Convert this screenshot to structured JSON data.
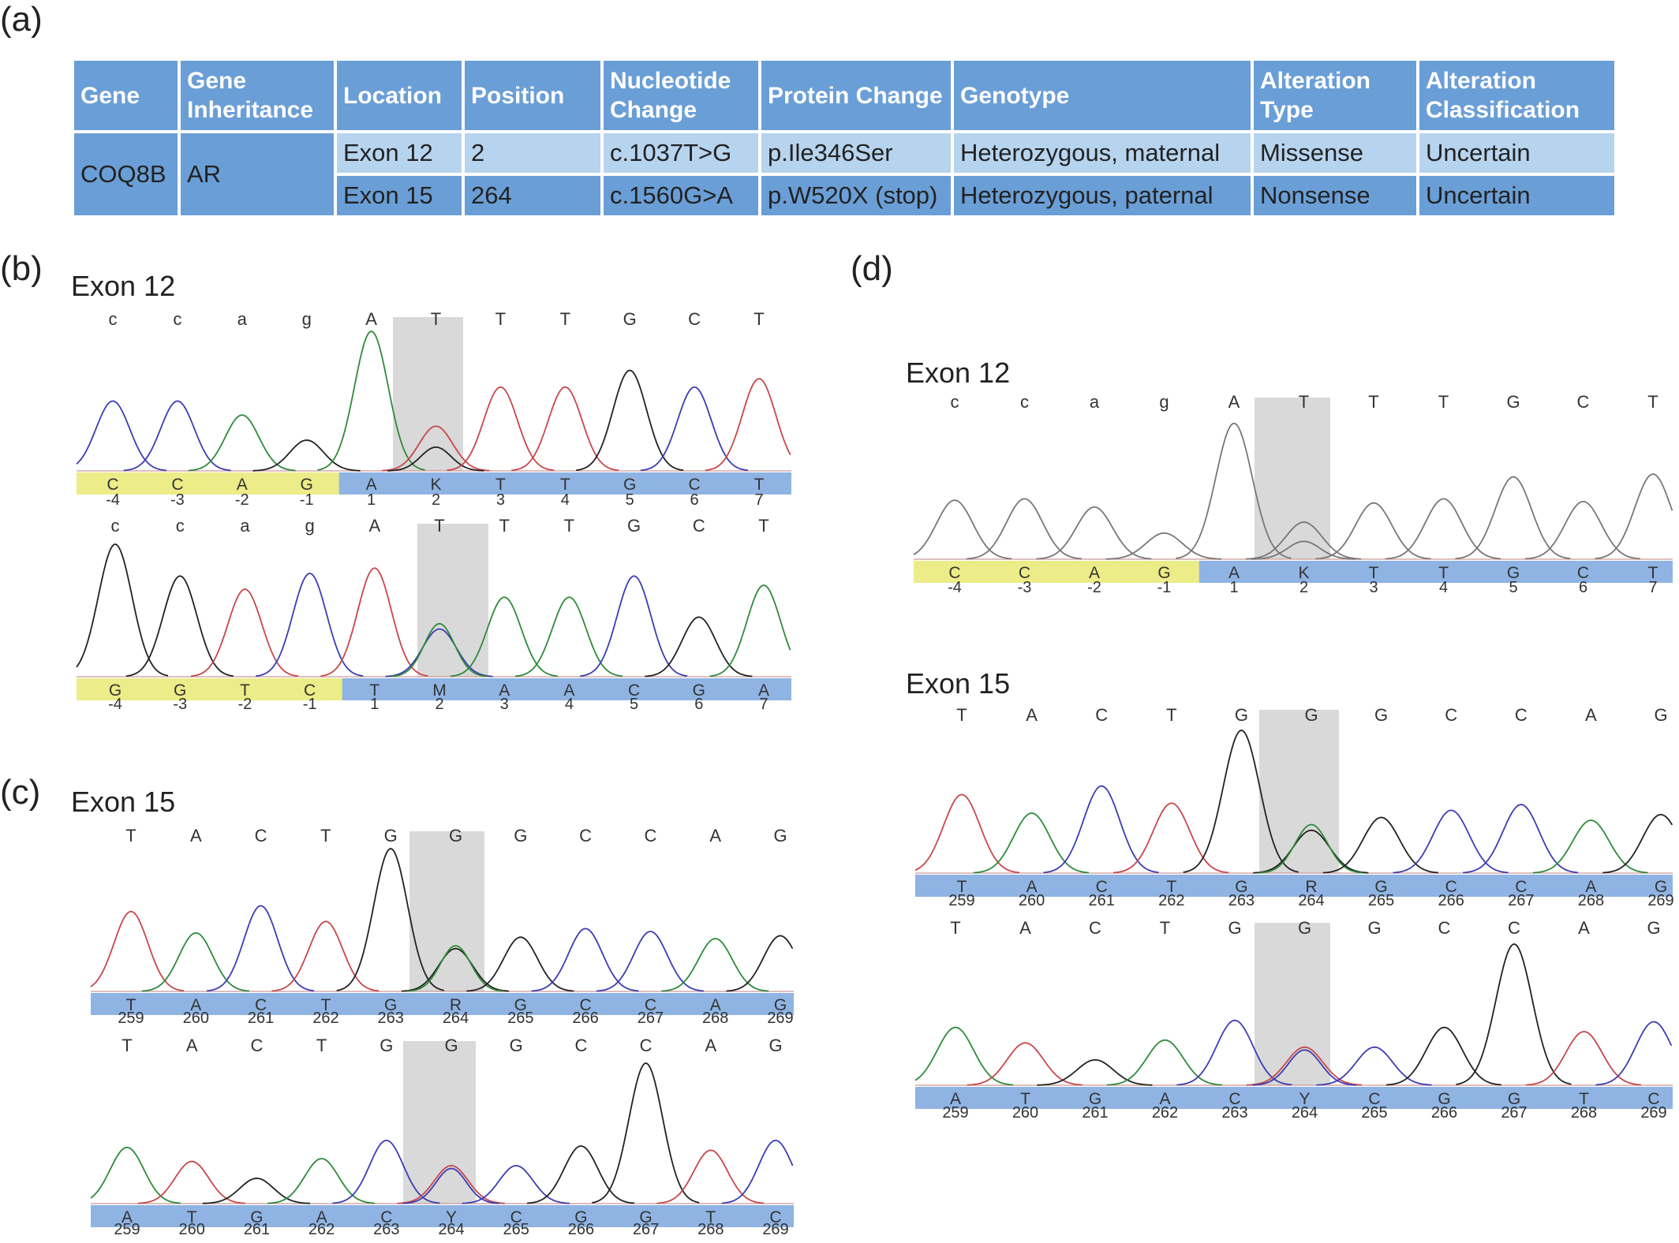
{
  "panels": {
    "a": "(a)",
    "b": "(b)",
    "c": "(c)",
    "d": "(d)"
  },
  "table": {
    "headers": [
      "Gene",
      "Gene Inheritance",
      "Location",
      "Position",
      "Nucleotide Change",
      "Protein Change",
      "Genotype",
      "Alteration Type",
      "Alteration Classification"
    ],
    "gene": "COQ8B",
    "inheritance": "AR",
    "rows": [
      {
        "location": "Exon 12",
        "position": "2",
        "nucleotide": "c.1037T>G",
        "protein": "p.Ile346Ser",
        "genotype": "Heterozygous, maternal",
        "type": "Missense",
        "classification": "Uncertain"
      },
      {
        "location": "Exon 15",
        "position": "264",
        "nucleotide": "c.1560G>A",
        "protein": "p.W520X (stop)",
        "genotype": "Heterozygous, paternal",
        "type": "Nonsense",
        "classification": "Uncertain"
      }
    ]
  },
  "titles": {
    "b": "Exon 12",
    "c": "Exon 15",
    "d12": "Exon 12",
    "d15": "Exon 15"
  },
  "colors": {
    "A": "#2e8b3a",
    "C": "#3c3cb4",
    "G": "#222222",
    "T": "#c8474a",
    "mono": "#777777",
    "bar_blue": "#8fb4e3",
    "bar_yellow": "#ecec88",
    "highlight": "#d9d9d9"
  },
  "chromatograms": [
    {
      "id": "b1",
      "ref": [
        "c",
        "c",
        "a",
        "g",
        "A",
        "T",
        "T",
        "T",
        "G",
        "C",
        "T"
      ],
      "called": [
        "C",
        "C",
        "A",
        "G",
        "A",
        "K",
        "T",
        "T",
        "G",
        "C",
        "T"
      ],
      "positions": [
        "-4",
        "-3",
        "-2",
        "-1",
        "1",
        "2",
        "3",
        "4",
        "5",
        "6",
        "7"
      ],
      "highlight_index": 5,
      "yellow_count": 4,
      "peaks": [
        {
          "base": "C",
          "h": 0.5
        },
        {
          "base": "C",
          "h": 0.5
        },
        {
          "base": "A",
          "h": 0.4
        },
        {
          "base": "G",
          "h": 0.22
        },
        {
          "base": "A",
          "h": 1.0
        },
        {
          "base": "T",
          "h": 0.32,
          "second": {
            "base": "G",
            "h": 0.17
          }
        },
        {
          "base": "T",
          "h": 0.6
        },
        {
          "base": "T",
          "h": 0.6
        },
        {
          "base": "G",
          "h": 0.72
        },
        {
          "base": "C",
          "h": 0.6
        },
        {
          "base": "T",
          "h": 0.66
        }
      ]
    },
    {
      "id": "b2",
      "ref": [
        "c",
        "c",
        "a",
        "g",
        "A",
        "T",
        "T",
        "T",
        "G",
        "C",
        "T"
      ],
      "called": [
        "G",
        "G",
        "T",
        "C",
        "T",
        "M",
        "A",
        "A",
        "C",
        "G",
        "A"
      ],
      "positions": [
        "-4",
        "-3",
        "-2",
        "-1",
        "1",
        "2",
        "3",
        "4",
        "5",
        "6",
        "7"
      ],
      "highlight_index": 5,
      "yellow_count": 4,
      "peaks": [
        {
          "base": "G",
          "h": 1.0
        },
        {
          "base": "G",
          "h": 0.76
        },
        {
          "base": "T",
          "h": 0.66
        },
        {
          "base": "C",
          "h": 0.78
        },
        {
          "base": "T",
          "h": 0.82
        },
        {
          "base": "C",
          "h": 0.36,
          "second": {
            "base": "A",
            "h": 0.4
          }
        },
        {
          "base": "A",
          "h": 0.6
        },
        {
          "base": "A",
          "h": 0.6
        },
        {
          "base": "C",
          "h": 0.76
        },
        {
          "base": "G",
          "h": 0.45
        },
        {
          "base": "A",
          "h": 0.69
        }
      ]
    },
    {
      "id": "c1",
      "ref": [
        "T",
        "A",
        "C",
        "T",
        "G",
        "G",
        "G",
        "C",
        "C",
        "A",
        "G"
      ],
      "called": [
        "T",
        "A",
        "C",
        "T",
        "G",
        "R",
        "G",
        "C",
        "C",
        "A",
        "G"
      ],
      "positions": [
        "259",
        "260",
        "261",
        "262",
        "263",
        "264",
        "265",
        "266",
        "267",
        "268",
        "269"
      ],
      "highlight_index": 5,
      "yellow_count": 0,
      "peaks": [
        {
          "base": "T",
          "h": 0.56
        },
        {
          "base": "A",
          "h": 0.41
        },
        {
          "base": "C",
          "h": 0.6
        },
        {
          "base": "T",
          "h": 0.49
        },
        {
          "base": "G",
          "h": 1.0
        },
        {
          "base": "G",
          "h": 0.3,
          "second": {
            "base": "A",
            "h": 0.32
          }
        },
        {
          "base": "G",
          "h": 0.38
        },
        {
          "base": "C",
          "h": 0.44
        },
        {
          "base": "C",
          "h": 0.42
        },
        {
          "base": "A",
          "h": 0.37
        },
        {
          "base": "G",
          "h": 0.39
        }
      ]
    },
    {
      "id": "c2",
      "ref": [
        "T",
        "A",
        "C",
        "T",
        "G",
        "G",
        "G",
        "C",
        "C",
        "A",
        "G"
      ],
      "called": [
        "A",
        "T",
        "G",
        "A",
        "C",
        "Y",
        "C",
        "G",
        "G",
        "T",
        "C"
      ],
      "positions": [
        "259",
        "260",
        "261",
        "262",
        "263",
        "264",
        "265",
        "266",
        "267",
        "268",
        "269"
      ],
      "highlight_index": 5,
      "yellow_count": 0,
      "peaks": [
        {
          "base": "A",
          "h": 0.4
        },
        {
          "base": "T",
          "h": 0.3
        },
        {
          "base": "G",
          "h": 0.18
        },
        {
          "base": "A",
          "h": 0.32
        },
        {
          "base": "C",
          "h": 0.45
        },
        {
          "base": "T",
          "h": 0.27,
          "second": {
            "base": "C",
            "h": 0.25
          }
        },
        {
          "base": "C",
          "h": 0.27
        },
        {
          "base": "G",
          "h": 0.41
        },
        {
          "base": "G",
          "h": 1.0
        },
        {
          "base": "T",
          "h": 0.38
        },
        {
          "base": "C",
          "h": 0.45
        }
      ]
    },
    {
      "id": "d1",
      "ref": [
        "c",
        "c",
        "a",
        "g",
        "A",
        "T",
        "T",
        "T",
        "G",
        "C",
        "T"
      ],
      "called": [
        "C",
        "C",
        "A",
        "G",
        "A",
        "K",
        "T",
        "T",
        "G",
        "C",
        "T"
      ],
      "positions": [
        "-4",
        "-3",
        "-2",
        "-1",
        "1",
        "2",
        "3",
        "4",
        "5",
        "6",
        "7"
      ],
      "highlight_index": 5,
      "yellow_count": 4,
      "mono": true,
      "peaks": [
        {
          "base": "C",
          "h": 0.43
        },
        {
          "base": "C",
          "h": 0.44
        },
        {
          "base": "A",
          "h": 0.38
        },
        {
          "base": "G",
          "h": 0.19
        },
        {
          "base": "A",
          "h": 0.99
        },
        {
          "base": "T",
          "h": 0.27,
          "second": {
            "base": "G",
            "h": 0.13
          }
        },
        {
          "base": "T",
          "h": 0.41
        },
        {
          "base": "T",
          "h": 0.44
        },
        {
          "base": "G",
          "h": 0.6
        },
        {
          "base": "C",
          "h": 0.42
        },
        {
          "base": "T",
          "h": 0.62
        }
      ]
    },
    {
      "id": "d2",
      "ref": [
        "T",
        "A",
        "C",
        "T",
        "G",
        "G",
        "G",
        "C",
        "C",
        "A",
        "G"
      ],
      "called": [
        "T",
        "A",
        "C",
        "T",
        "G",
        "R",
        "G",
        "C",
        "C",
        "A",
        "G"
      ],
      "positions": [
        "259",
        "260",
        "261",
        "262",
        "263",
        "264",
        "265",
        "266",
        "267",
        "268",
        "269"
      ],
      "highlight_index": 5,
      "yellow_count": 0,
      "peaks": [
        {
          "base": "T",
          "h": 0.55
        },
        {
          "base": "A",
          "h": 0.42
        },
        {
          "base": "C",
          "h": 0.61
        },
        {
          "base": "T",
          "h": 0.49
        },
        {
          "base": "G",
          "h": 1.0
        },
        {
          "base": "G",
          "h": 0.3,
          "second": {
            "base": "A",
            "h": 0.34
          }
        },
        {
          "base": "G",
          "h": 0.39
        },
        {
          "base": "C",
          "h": 0.44
        },
        {
          "base": "C",
          "h": 0.48
        },
        {
          "base": "A",
          "h": 0.37
        },
        {
          "base": "G",
          "h": 0.41
        }
      ]
    },
    {
      "id": "d2b",
      "ref": [
        "T",
        "A",
        "C",
        "T",
        "G",
        "G",
        "G",
        "C",
        "C",
        "A",
        "G"
      ],
      "called": [
        "A",
        "T",
        "G",
        "A",
        "C",
        "Y",
        "C",
        "G",
        "G",
        "T",
        "C"
      ],
      "positions": [
        "259",
        "260",
        "261",
        "262",
        "263",
        "264",
        "265",
        "266",
        "267",
        "268",
        "269"
      ],
      "highlight_index": 5,
      "yellow_count": 0,
      "peaks": [
        {
          "base": "A",
          "h": 0.41
        },
        {
          "base": "T",
          "h": 0.3
        },
        {
          "base": "G",
          "h": 0.18
        },
        {
          "base": "A",
          "h": 0.32
        },
        {
          "base": "C",
          "h": 0.46
        },
        {
          "base": "T",
          "h": 0.27,
          "second": {
            "base": "C",
            "h": 0.25
          }
        },
        {
          "base": "C",
          "h": 0.27
        },
        {
          "base": "G",
          "h": 0.41
        },
        {
          "base": "G",
          "h": 1.0
        },
        {
          "base": "T",
          "h": 0.38
        },
        {
          "base": "C",
          "h": 0.45
        }
      ]
    }
  ]
}
